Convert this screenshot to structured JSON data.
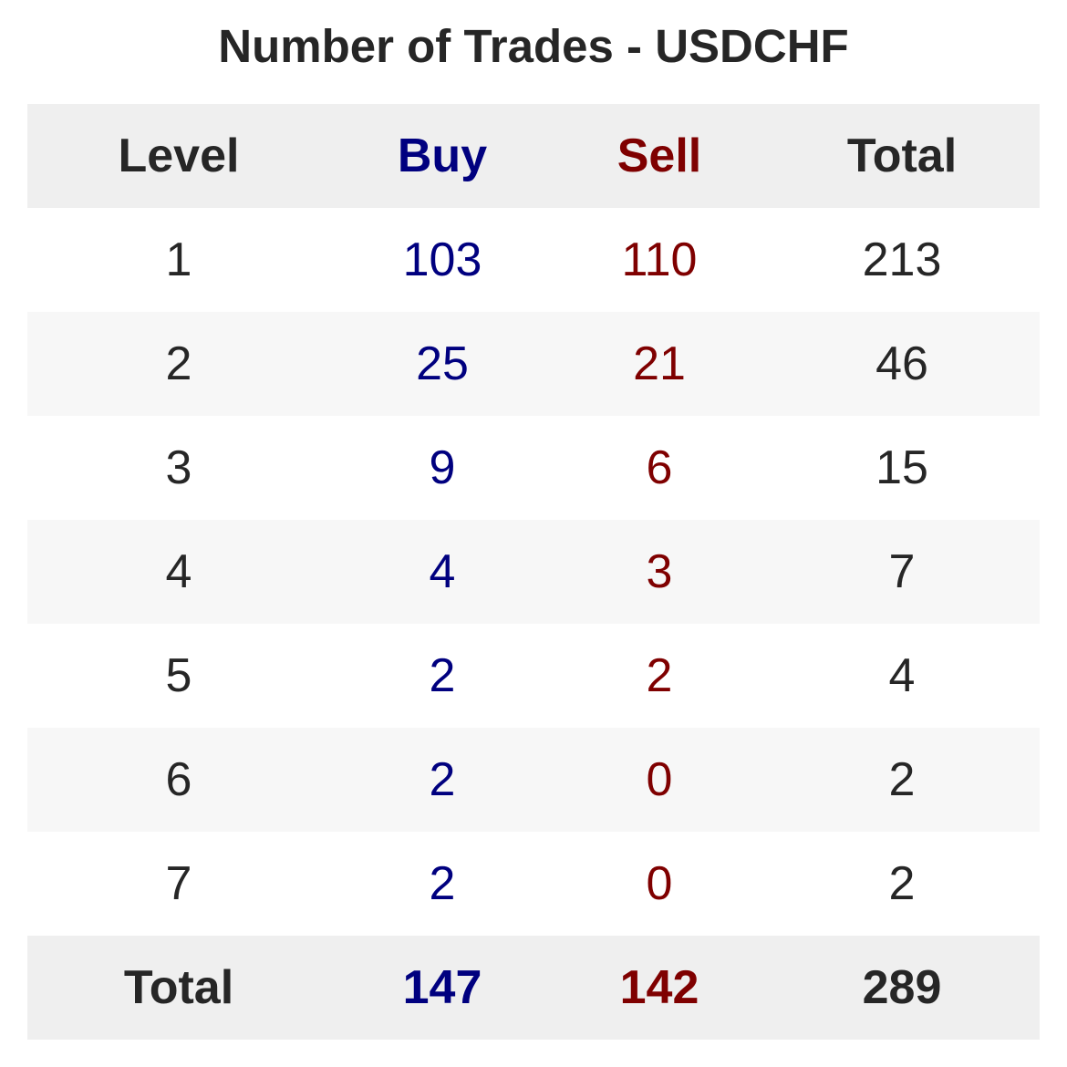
{
  "chart_data": {
    "type": "table",
    "title": "Number of Trades - USDCHF",
    "columns": [
      "Level",
      "Buy",
      "Sell",
      "Total"
    ],
    "rows": [
      {
        "level": "1",
        "buy": "103",
        "sell": "110",
        "total": "213"
      },
      {
        "level": "2",
        "buy": "25",
        "sell": "21",
        "total": "46"
      },
      {
        "level": "3",
        "buy": "9",
        "sell": "6",
        "total": "15"
      },
      {
        "level": "4",
        "buy": "4",
        "sell": "3",
        "total": "7"
      },
      {
        "level": "5",
        "buy": "2",
        "sell": "2",
        "total": "4"
      },
      {
        "level": "6",
        "buy": "2",
        "sell": "0",
        "total": "2"
      },
      {
        "level": "7",
        "buy": "2",
        "sell": "0",
        "total": "2"
      }
    ],
    "footer": {
      "level": "Total",
      "buy": "147",
      "sell": "142",
      "total": "289"
    }
  },
  "colors": {
    "buy": "#00007f",
    "sell": "#7f0000",
    "text": "#262626",
    "header_bg": "#efefef",
    "stripe_bg": "#f7f7f7"
  }
}
